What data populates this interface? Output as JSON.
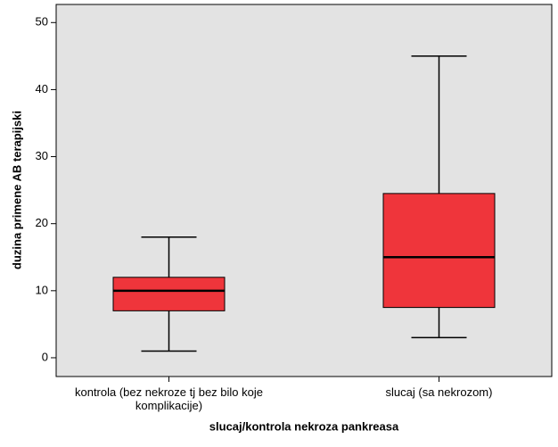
{
  "chart_data": {
    "type": "boxplot",
    "x_label": "slucaj/kontrola nekroza pankreasa",
    "y_label": "duzina primene AB terapijski",
    "categories": [
      "kontrola (bez nekroze tj bez bilo koje komplikacije)",
      "slucaj (sa nekrozom)"
    ],
    "min": [
      1,
      3
    ],
    "q1": [
      7,
      7.5
    ],
    "median": [
      10,
      15
    ],
    "q3": [
      12,
      24.5
    ],
    "max": [
      18,
      45
    ],
    "color": "#ef353b",
    "ylim": [
      -2.8,
      52.7
    ],
    "yticks": [
      0,
      10,
      20,
      30,
      40,
      50
    ]
  }
}
